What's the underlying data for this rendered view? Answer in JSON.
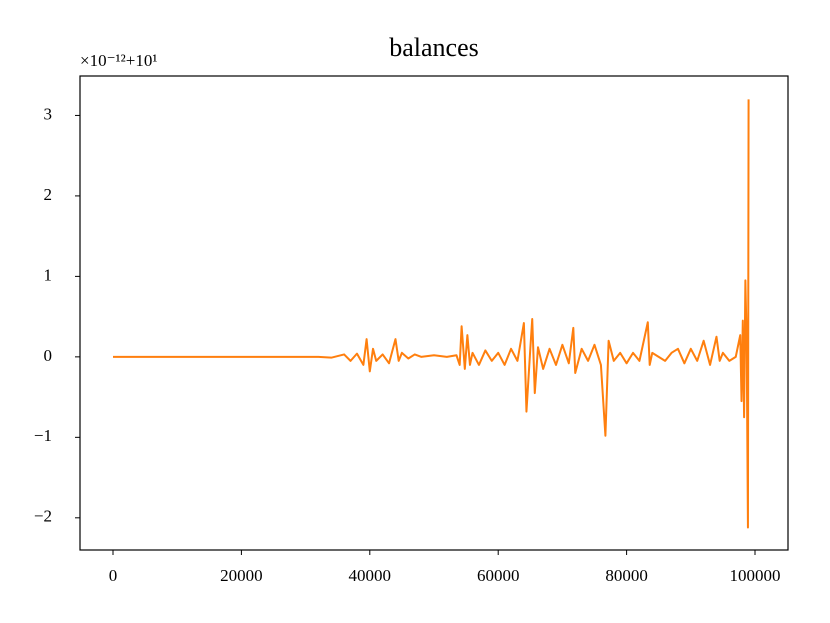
{
  "chart_data": {
    "type": "line",
    "title": "balances",
    "offset_text": "×10⁻¹²+10¹",
    "color": "#ff7f0e",
    "x": [
      0,
      2000,
      4000,
      6000,
      8000,
      10000,
      12000,
      14000,
      16000,
      18000,
      20000,
      22000,
      24000,
      26000,
      28000,
      30000,
      32000,
      34000,
      35000,
      36000,
      37000,
      38000,
      39000,
      39500,
      40000,
      40500,
      41000,
      42000,
      43000,
      44000,
      44500,
      45000,
      46000,
      47000,
      48000,
      50000,
      52000,
      53500,
      54000,
      54300,
      54800,
      55200,
      55600,
      56000,
      57000,
      58000,
      59000,
      60000,
      61000,
      62000,
      63000,
      64000,
      64400,
      65000,
      65300,
      65700,
      66200,
      67000,
      68000,
      69000,
      70000,
      71000,
      71700,
      72000,
      73000,
      74000,
      75000,
      76000,
      76700,
      77200,
      78000,
      79000,
      80000,
      81000,
      82000,
      83300,
      83600,
      84000,
      85000,
      86000,
      87000,
      88000,
      89000,
      90000,
      91000,
      92000,
      93000,
      94000,
      94500,
      95000,
      96000,
      97000,
      97700,
      97900,
      98100,
      98300,
      98500,
      98700,
      98900,
      99000
    ],
    "values": [
      0,
      0,
      0,
      0,
      0,
      0,
      0,
      0,
      0,
      0,
      0,
      0,
      0,
      0,
      0,
      0,
      0,
      -0.01,
      0.01,
      0.03,
      -0.05,
      0.04,
      -0.1,
      0.22,
      -0.18,
      0.1,
      -0.05,
      0.03,
      -0.08,
      0.22,
      -0.05,
      0.05,
      -0.02,
      0.03,
      0,
      0.02,
      0,
      0.02,
      -0.1,
      0.38,
      -0.15,
      0.27,
      -0.1,
      0.05,
      -0.1,
      0.08,
      -0.05,
      0.05,
      -0.1,
      0.1,
      -0.05,
      0.42,
      -0.68,
      0.1,
      0.47,
      -0.45,
      0.12,
      -0.15,
      0.1,
      -0.1,
      0.15,
      -0.08,
      0.36,
      -0.2,
      0.1,
      -0.05,
      0.15,
      -0.1,
      -0.98,
      0.2,
      -0.05,
      0.05,
      -0.08,
      0.05,
      -0.05,
      0.43,
      -0.1,
      0.05,
      0,
      -0.05,
      0.05,
      0.1,
      -0.08,
      0.1,
      -0.05,
      0.2,
      -0.1,
      0.25,
      -0.05,
      0.05,
      -0.05,
      0,
      0.27,
      -0.55,
      0.45,
      -0.75,
      0.95,
      0.2,
      -2.12,
      3.2
    ],
    "xlim": [
      -5140,
      105140
    ],
    "ylim": [
      -2.4,
      3.49
    ],
    "xticks": [
      0,
      20000,
      40000,
      60000,
      80000,
      100000
    ],
    "yticks": [
      {
        "value": -2,
        "label": "−2"
      },
      {
        "value": -1,
        "label": "−1"
      },
      0,
      1,
      2,
      3
    ]
  }
}
